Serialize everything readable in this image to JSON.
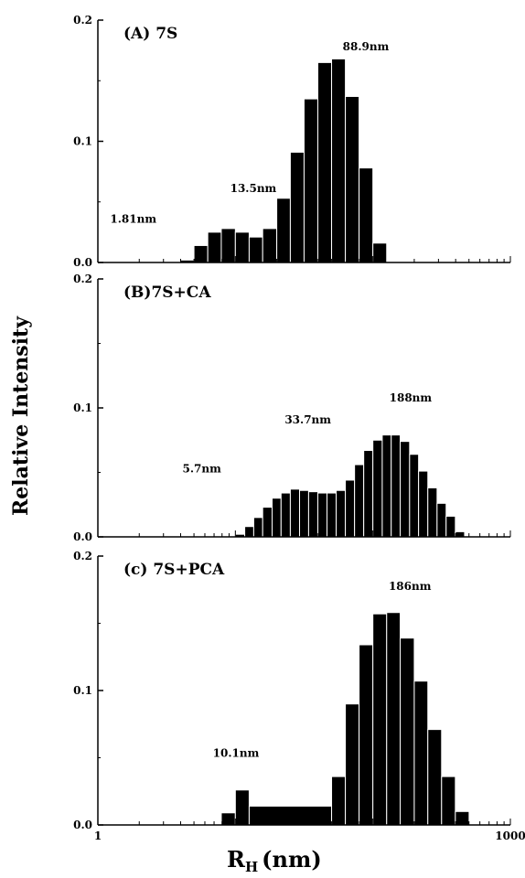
{
  "ylabel": "Relative Intensity",
  "xlabel_main": "R",
  "xlabel_sub": "H",
  "xlabel_unit": "(nm)",
  "colors": {
    "bar": "#000000",
    "bar_edge": "#ffffff",
    "axis": "#000000"
  },
  "chart_data": [
    {
      "type": "bar",
      "title": "(A) 7S",
      "x_scale": "log",
      "xlim": [
        1,
        1000
      ],
      "ylim": [
        0,
        0.2
      ],
      "yticks": [
        "0.0",
        "0.1",
        "0.2"
      ],
      "annotations": [
        {
          "text": "1.81nm",
          "x": 1.81,
          "y": 0.03
        },
        {
          "text": "13.5nm",
          "x": 13.5,
          "y": 0.055
        },
        {
          "text": "88.9nm",
          "x": 88.9,
          "y": 0.172
        }
      ],
      "series": [
        {
          "x": [
            4.0,
            5.0,
            6.3,
            7.9,
            10.0,
            12.6,
            15.8,
            20.0,
            25.1,
            31.6,
            39.8,
            50.1,
            63.1,
            79.4,
            100,
            126,
            158,
            200
          ],
          "values": [
            0.002,
            0.014,
            0.025,
            0.028,
            0.025,
            0.021,
            0.028,
            0.053,
            0.091,
            0.135,
            0.165,
            0.168,
            0.137,
            0.078,
            0.016,
            0.0,
            0.0,
            0.0
          ]
        }
      ]
    },
    {
      "type": "bar",
      "title": "(B)7S+CA",
      "x_scale": "log",
      "xlim": [
        1,
        1000
      ],
      "ylim": [
        0,
        0.2
      ],
      "yticks": [
        "0.0",
        "0.1",
        "0.2"
      ],
      "annotations": [
        {
          "text": "5.7nm",
          "x": 5.7,
          "y": 0.047
        },
        {
          "text": "33.7nm",
          "x": 33.7,
          "y": 0.085
        },
        {
          "text": "188nm",
          "x": 188,
          "y": 0.102
        }
      ],
      "series": [
        {
          "x": [
            10.0,
            11.7,
            13.6,
            15.8,
            18.5,
            21.5,
            25.1,
            29.3,
            34.1,
            39.8,
            46.4,
            54.1,
            63.1,
            73.6,
            85.8,
            100,
            117,
            136,
            158,
            185,
            215,
            251,
            293,
            341,
            398
          ],
          "values": [
            0.002,
            0.008,
            0.015,
            0.023,
            0.03,
            0.034,
            0.037,
            0.036,
            0.035,
            0.034,
            0.034,
            0.036,
            0.044,
            0.056,
            0.067,
            0.075,
            0.079,
            0.079,
            0.074,
            0.064,
            0.051,
            0.038,
            0.026,
            0.016,
            0.004
          ]
        }
      ]
    },
    {
      "type": "bar",
      "title": "(c) 7S+PCA",
      "x_scale": "log",
      "xlim": [
        1,
        1000
      ],
      "ylim": [
        0,
        0.2
      ],
      "yticks": [
        "0.0",
        "0.1",
        "0.2"
      ],
      "annotations": [
        {
          "text": "10.1nm",
          "x": 10.1,
          "y": 0.048
        },
        {
          "text": "186nm",
          "x": 186,
          "y": 0.172
        }
      ],
      "series": [
        {
          "x": [
            7.9,
            10.0,
            12.6,
            50.1,
            63.1,
            79.4,
            100,
            126,
            158,
            200,
            251,
            316,
            398,
            501
          ],
          "values": [
            0.009,
            0.026,
            0.014,
            0.036,
            0.09,
            0.134,
            0.157,
            0.158,
            0.139,
            0.107,
            0.071,
            0.036,
            0.01,
            0.0
          ]
        }
      ]
    }
  ],
  "x_axis": {
    "tick_labels": [
      {
        "value": 1,
        "text": "1"
      },
      {
        "value": 1000,
        "text": "1000"
      }
    ]
  }
}
